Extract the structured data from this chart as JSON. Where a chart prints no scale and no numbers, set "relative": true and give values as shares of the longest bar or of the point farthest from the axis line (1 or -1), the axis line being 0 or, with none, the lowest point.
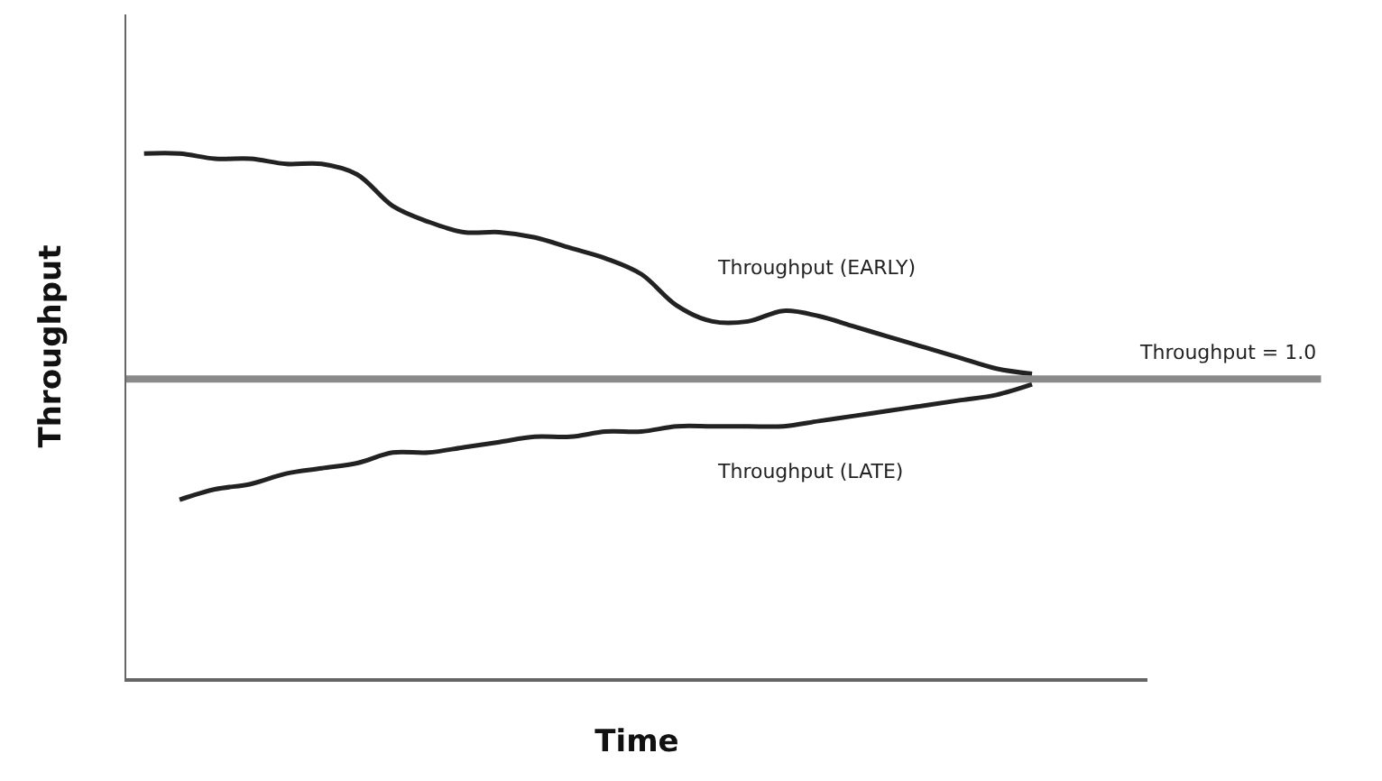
{
  "chart_data": {
    "type": "line",
    "relative": true,
    "xlabel": "Time",
    "ylabel": "Throughput",
    "categories": [
      null,
      null,
      null,
      null,
      null,
      null,
      null,
      null,
      null,
      null,
      null,
      null,
      null,
      null,
      null,
      null,
      null,
      null,
      null,
      null,
      null,
      null,
      null,
      null,
      null,
      null
    ],
    "series": [
      {
        "name": "Throughput (EARLY)",
        "color": "#222222",
        "values": [
          1.0,
          1.0,
          0.99,
          0.99,
          0.98,
          0.98,
          0.96,
          0.9,
          0.87,
          0.85,
          0.85,
          0.84,
          0.82,
          0.8,
          0.77,
          0.71,
          0.68,
          0.68,
          0.7,
          0.69,
          0.67,
          0.65,
          0.63,
          0.61,
          0.59,
          0.58
        ]
      },
      {
        "name": "Throughput (LATE)",
        "color": "#222222",
        "values": [
          null,
          0.34,
          0.36,
          0.37,
          0.39,
          0.4,
          0.41,
          0.43,
          0.43,
          0.44,
          0.45,
          0.46,
          0.46,
          0.47,
          0.47,
          0.48,
          0.48,
          0.48,
          0.48,
          0.49,
          0.5,
          0.51,
          0.52,
          0.53,
          0.54,
          0.56
        ]
      }
    ],
    "ref_lines": [
      {
        "axis": "y",
        "value": 0.57,
        "color": "#8a8a8a"
      }
    ],
    "annotations": [
      "Throughput = 1.0"
    ],
    "legend": false,
    "marker": "none",
    "line_style": "solid"
  }
}
